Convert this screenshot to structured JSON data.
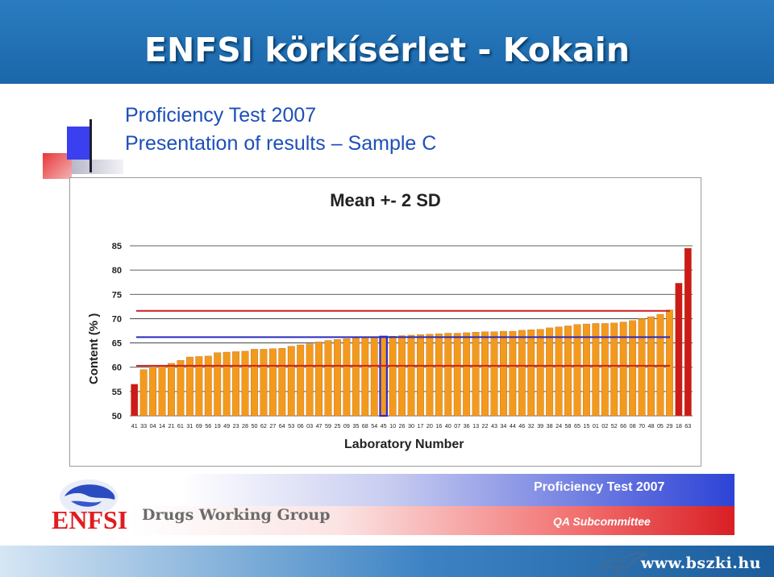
{
  "slide": {
    "title": "ENFSI körkísérlet - Kokain",
    "footer_url": "www.bszki.hu"
  },
  "panel": {
    "heading_line1": "Proficiency Test 2007",
    "heading_line2": "Presentation of results – Sample C",
    "badge_top": "Proficiency Test 2007",
    "badge_bottom": "QA Subcommittee",
    "group_name": "Drugs Working Group",
    "logo_text": "ENFSI"
  },
  "colors": {
    "bar_orange": "#f39a1d",
    "bar_red": "#cc1a1a",
    "bar_blue_outline": "#2b2bd0",
    "line_red": "#c8201f",
    "line_blue": "#2a2ac0"
  },
  "chart_data": {
    "type": "bar",
    "title": "Mean +- 2 SD",
    "xlabel": "Laboratory Number",
    "ylabel": "Content (% )",
    "ylim": [
      50,
      85
    ],
    "yticks": [
      50,
      55,
      60,
      65,
      70,
      75,
      80,
      85
    ],
    "grid": true,
    "categories": [
      "41",
      "33",
      "04",
      "14",
      "21",
      "61",
      "31",
      "69",
      "56",
      "19",
      "49",
      "23",
      "28",
      "50",
      "62",
      "27",
      "64",
      "53",
      "06",
      "03",
      "47",
      "59",
      "25",
      "09",
      "35",
      "68",
      "54",
      "45",
      "10",
      "26",
      "30",
      "17",
      "20",
      "16",
      "40",
      "07",
      "36",
      "13",
      "22",
      "43",
      "34",
      "44",
      "46",
      "32",
      "39",
      "38",
      "24",
      "58",
      "65",
      "15",
      "01",
      "02",
      "52",
      "66",
      "08",
      "70",
      "48",
      "05",
      "29",
      "18",
      "63"
    ],
    "values": [
      56.5,
      59.5,
      60.0,
      60.3,
      60.8,
      61.4,
      62.1,
      62.2,
      62.3,
      63.0,
      63.1,
      63.2,
      63.3,
      63.7,
      63.7,
      63.8,
      63.9,
      64.3,
      64.6,
      64.8,
      65.2,
      65.5,
      65.7,
      65.9,
      66.0,
      66.1,
      66.2,
      66.3,
      66.4,
      66.5,
      66.6,
      66.7,
      66.8,
      66.9,
      67.0,
      67.0,
      67.1,
      67.2,
      67.3,
      67.3,
      67.4,
      67.4,
      67.6,
      67.7,
      67.8,
      68.1,
      68.3,
      68.5,
      68.8,
      68.9,
      69.0,
      69.0,
      69.1,
      69.3,
      69.6,
      70.0,
      70.4,
      70.9,
      71.8,
      77.3,
      84.5
    ],
    "highlight_red": [
      "41",
      "18",
      "63"
    ],
    "highlight_blue": [
      "45"
    ],
    "reference_lines": {
      "mean": 66.2,
      "lower": 60.3,
      "upper": 71.6
    }
  }
}
